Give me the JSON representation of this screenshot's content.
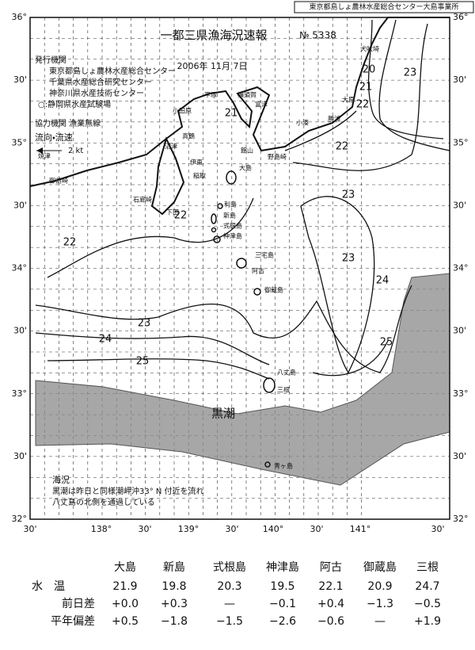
{
  "header": {
    "stamp": "東京都島しょ農林水産総合センター大島事業所",
    "title": "一都三県漁海況速報",
    "number": "№ 5338",
    "date": "2006年 11月 7日"
  },
  "issuers": {
    "heading": "発行機関",
    "items": [
      "東京都島しょ農林水産総合センター",
      "千葉県水産総合研究センター",
      "神奈川県水産技術センター",
      "○:静岡県水産試験場"
    ]
  },
  "cooperation": "協力機関 漁業無線",
  "legend": {
    "label": "流向・流速",
    "scale": "2 kt"
  },
  "latitude_labels": {
    "left": [
      "36°",
      "30'",
      "35°",
      "30'",
      "34°",
      "30'",
      "33°",
      "30'",
      "32°"
    ],
    "right": [
      "36°",
      "30'",
      "35°",
      "30'",
      "34°",
      "30'",
      "33°",
      "30'",
      "32°"
    ]
  },
  "longitude_labels": [
    "30'",
    "138°",
    "30'",
    "139°",
    "30'",
    "140°",
    "30'",
    "141°",
    "30'"
  ],
  "contour_labels": [
    20,
    21,
    22,
    23,
    21,
    22,
    23,
    22,
    22,
    23,
    24,
    23,
    24,
    25,
    25
  ],
  "places": [
    "犬吠埼",
    "大原",
    "勝浦",
    "小湊",
    "野島崎",
    "館山",
    "富津",
    "横須賀",
    "平塚",
    "小田原",
    "真鶴",
    "伊東",
    "沼津",
    "稲取",
    "下田",
    "石廊崎",
    "御前崎",
    "焼津",
    "大島",
    "利島",
    "新島",
    "式根島",
    "神津島",
    "三宅島",
    "阿古",
    "御蔵島",
    "八丈島",
    "三根",
    "青ヶ島"
  ],
  "kuroshio_label": "黒潮",
  "note": {
    "heading": "海況",
    "lines": [
      "黒潮は昨日と同様潮岬沖33° N 付近を流れ",
      "八丈島の北側を通過している"
    ]
  },
  "table": {
    "columns": [
      "大島",
      "新島",
      "式根島",
      "神津島",
      "阿古",
      "御蔵島",
      "三根"
    ],
    "rows": [
      {
        "label": "水　温",
        "cells": [
          "21.9",
          "19.8",
          "20.3",
          "19.5",
          "22.1",
          "20.9",
          "24.7"
        ]
      },
      {
        "label": "前日差",
        "cells": [
          "+0.0",
          "+0.3",
          "—",
          "−0.1",
          "+0.4",
          "−1.3",
          "−0.5"
        ]
      },
      {
        "label": "平年偏差",
        "cells": [
          "+0.5",
          "−1.8",
          "−1.5",
          "−2.6",
          "−0.6",
          "—",
          "+1.9"
        ]
      }
    ]
  }
}
